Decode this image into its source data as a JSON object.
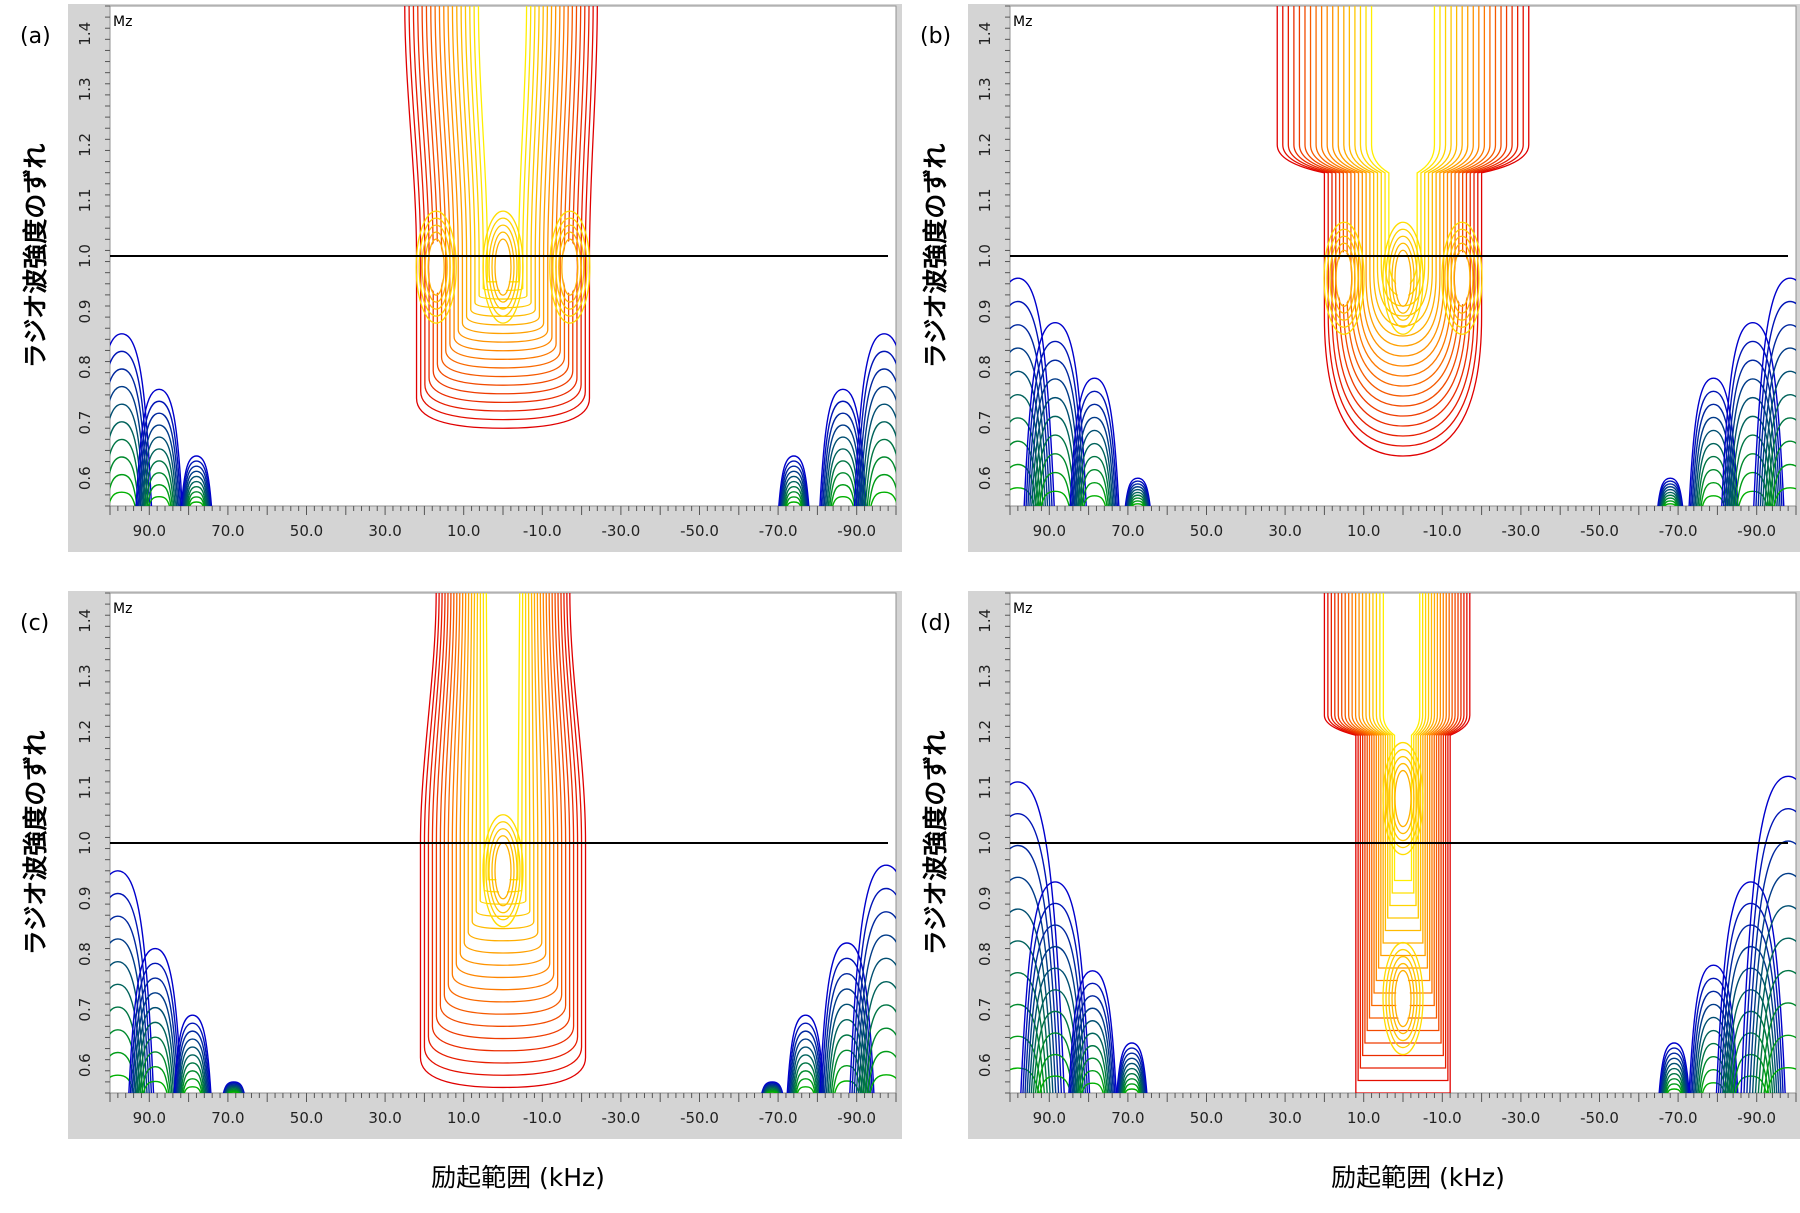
{
  "x_caption": "励起範囲 (kHz)",
  "y_caption": "ラジオ波強度のずれ",
  "colors": {
    "blue": "#0000cc",
    "green": "#00b000",
    "red": "#e00000",
    "orange": "#ff8000",
    "yellow": "#ffee00",
    "panel_frame": "#d4d4d4"
  },
  "chart_data": [
    {
      "type": "contour",
      "panel_label": "(a)",
      "series_label": "Mz",
      "xlabel": "励起範囲 (kHz)",
      "ylabel": "ラジオ波強度のずれ",
      "x_direction": "reversed",
      "xlim": [
        100,
        -100
      ],
      "ylim": [
        0.55,
        1.45
      ],
      "x_ticks": [
        90.0,
        70.0,
        50.0,
        30.0,
        10.0,
        -10.0,
        -30.0,
        -50.0,
        -70.0,
        -90.0
      ],
      "x_tick_labels": [
        "90.0",
        "70.0",
        "50.0",
        "30.0",
        "10.0",
        "-10.0",
        "-30.0",
        "-50.0",
        "-70.0",
        "-90.0"
      ],
      "y_ticks": [
        0.6,
        0.7,
        0.8,
        0.9,
        1.0,
        1.1,
        1.2,
        1.3,
        1.4
      ],
      "y_tick_labels": [
        "0.6",
        "0.7",
        "0.8",
        "0.9",
        "1.0",
        "1.1",
        "1.2",
        "1.3",
        "1.4"
      ],
      "reference_line_y": 1.0,
      "center_lobe": {
        "x_left": 22,
        "x_right": -22,
        "top_left": 25,
        "top_right": -24,
        "y_bottom": 0.69,
        "top_shape": "narrow-open"
      },
      "hot_spots": [
        {
          "x": 17,
          "y": 0.98
        },
        {
          "x": 0,
          "y": 0.98
        },
        {
          "x": -17,
          "y": 0.98
        }
      ],
      "side_peaks_left": [
        {
          "x": 97,
          "y_top": 0.86
        },
        {
          "x": 87.5,
          "y_top": 0.76
        },
        {
          "x": 78,
          "y_top": 0.64
        }
      ],
      "side_peaks_right": [
        {
          "x": -74,
          "y_top": 0.64
        },
        {
          "x": -86.5,
          "y_top": 0.76
        },
        {
          "x": -97,
          "y_top": 0.86
        }
      ]
    },
    {
      "type": "contour",
      "panel_label": "(b)",
      "series_label": "Mz",
      "xlabel": "励起範囲 (kHz)",
      "ylabel": "ラジオ波強度のずれ",
      "x_direction": "reversed",
      "xlim": [
        100,
        -100
      ],
      "ylim": [
        0.55,
        1.45
      ],
      "x_ticks": [
        90.0,
        70.0,
        50.0,
        30.0,
        10.0,
        -10.0,
        -30.0,
        -50.0,
        -70.0,
        -90.0
      ],
      "x_tick_labels": [
        "90.0",
        "70.0",
        "50.0",
        "30.0",
        "10.0",
        "-10.0",
        "-30.0",
        "-50.0",
        "-70.0",
        "-90.0"
      ],
      "y_ticks": [
        0.6,
        0.7,
        0.8,
        0.9,
        1.0,
        1.1,
        1.2,
        1.3,
        1.4
      ],
      "y_tick_labels": [
        "0.6",
        "0.7",
        "0.8",
        "0.9",
        "1.0",
        "1.1",
        "1.2",
        "1.3",
        "1.4"
      ],
      "reference_line_y": 1.0,
      "center_lobe": {
        "x_left": 20,
        "x_right": -20,
        "top_left": 32,
        "top_right": -32,
        "y_bottom": 0.64,
        "top_shape": "wide-arch"
      },
      "hot_spots": [
        {
          "x": 15,
          "y": 0.96
        },
        {
          "x": 0,
          "y": 0.96
        },
        {
          "x": -15,
          "y": 0.96
        }
      ],
      "side_peaks_left": [
        {
          "x": 98,
          "y_top": 0.96
        },
        {
          "x": 88.5,
          "y_top": 0.88
        },
        {
          "x": 78.5,
          "y_top": 0.78
        },
        {
          "x": 67.5,
          "y_top": 0.6
        }
      ],
      "side_peaks_right": [
        {
          "x": -68,
          "y_top": 0.6
        },
        {
          "x": -79,
          "y_top": 0.78
        },
        {
          "x": -89,
          "y_top": 0.88
        },
        {
          "x": -98.5,
          "y_top": 0.96
        }
      ]
    },
    {
      "type": "contour",
      "panel_label": "(c)",
      "series_label": "Mz",
      "xlabel": "励起範囲 (kHz)",
      "ylabel": "ラジオ波強度のずれ",
      "x_direction": "reversed",
      "xlim": [
        100,
        -100
      ],
      "ylim": [
        0.55,
        1.45
      ],
      "x_ticks": [
        90.0,
        70.0,
        50.0,
        30.0,
        10.0,
        -10.0,
        -30.0,
        -50.0,
        -70.0,
        -90.0
      ],
      "x_tick_labels": [
        "90.0",
        "70.0",
        "50.0",
        "30.0",
        "10.0",
        "-10.0",
        "-30.0",
        "-50.0",
        "-70.0",
        "-90.0"
      ],
      "y_ticks": [
        0.6,
        0.7,
        0.8,
        0.9,
        1.0,
        1.1,
        1.2,
        1.3,
        1.4
      ],
      "y_tick_labels": [
        "0.6",
        "0.7",
        "0.8",
        "0.9",
        "1.0",
        "1.1",
        "1.2",
        "1.3",
        "1.4"
      ],
      "reference_line_y": 1.0,
      "center_lobe": {
        "x_left": 21,
        "x_right": -21,
        "top_left": 17,
        "top_right": -17,
        "y_bottom": 0.56,
        "top_shape": "taper"
      },
      "hot_spots": [
        {
          "x": 0,
          "y": 0.95
        }
      ],
      "side_peaks_left": [
        {
          "x": 98,
          "y_top": 0.95
        },
        {
          "x": 88.5,
          "y_top": 0.81
        },
        {
          "x": 79,
          "y_top": 0.69
        },
        {
          "x": 68.5,
          "y_top": 0.57
        }
      ],
      "side_peaks_right": [
        {
          "x": -68.5,
          "y_top": 0.57
        },
        {
          "x": -77,
          "y_top": 0.69
        },
        {
          "x": -87.5,
          "y_top": 0.82
        },
        {
          "x": -97.5,
          "y_top": 0.96
        }
      ]
    },
    {
      "type": "contour",
      "panel_label": "(d)",
      "series_label": "Mz",
      "xlabel": "励起範囲 (kHz)",
      "ylabel": "ラジオ波強度のずれ",
      "x_direction": "reversed",
      "xlim": [
        100,
        -100
      ],
      "ylim": [
        0.55,
        1.45
      ],
      "x_ticks": [
        90.0,
        70.0,
        50.0,
        30.0,
        10.0,
        -10.0,
        -30.0,
        -50.0,
        -70.0,
        -90.0
      ],
      "x_tick_labels": [
        "90.0",
        "70.0",
        "50.0",
        "30.0",
        "10.0",
        "-10.0",
        "-30.0",
        "-50.0",
        "-70.0",
        "-90.0"
      ],
      "y_ticks": [
        0.6,
        0.7,
        0.8,
        0.9,
        1.0,
        1.1,
        1.2,
        1.3,
        1.4
      ],
      "y_tick_labels": [
        "0.6",
        "0.7",
        "0.8",
        "0.9",
        "1.0",
        "1.1",
        "1.2",
        "1.3",
        "1.4"
      ],
      "reference_line_y": 1.0,
      "center_lobe": {
        "x_left": 12,
        "x_right": -12,
        "top_left": 20,
        "top_right": -17,
        "y_bottom": 0.55,
        "top_shape": "shoulder"
      },
      "hot_spots": [
        {
          "x": 0,
          "y": 1.08
        },
        {
          "x": 0,
          "y": 0.72
        }
      ],
      "side_peaks_left": [
        {
          "x": 98,
          "y_top": 1.11
        },
        {
          "x": 88.5,
          "y_top": 0.93
        },
        {
          "x": 79,
          "y_top": 0.77
        },
        {
          "x": 69,
          "y_top": 0.64
        }
      ],
      "side_peaks_right": [
        {
          "x": -69,
          "y_top": 0.64
        },
        {
          "x": -79,
          "y_top": 0.78
        },
        {
          "x": -88.5,
          "y_top": 0.93
        },
        {
          "x": -98,
          "y_top": 1.12
        }
      ]
    }
  ]
}
